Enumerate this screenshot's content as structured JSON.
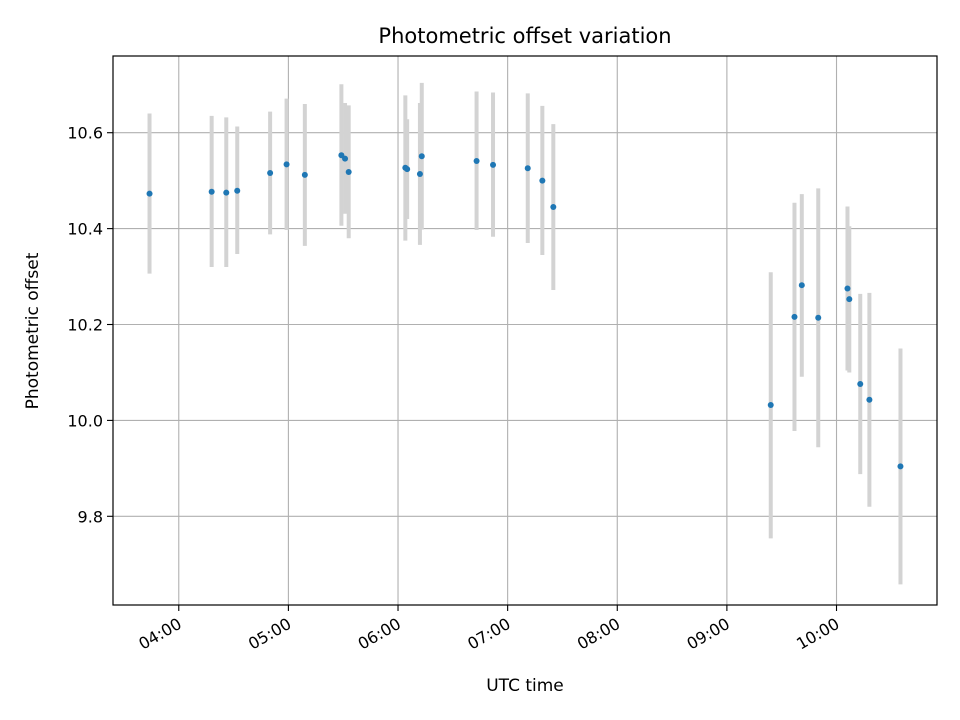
{
  "chart_data": {
    "type": "scatter",
    "title": "Photometric offset variation",
    "xlabel": "UTC time",
    "ylabel": "Photometric offset",
    "xlim": [
      "03:24",
      "10:55"
    ],
    "ylim": [
      9.615,
      10.76
    ],
    "x_ticks": [
      "04:00",
      "05:00",
      "06:00",
      "07:00",
      "08:00",
      "09:00",
      "10:00"
    ],
    "y_ticks": [
      "9.8",
      "10.0",
      "10.2",
      "10.4",
      "10.6"
    ],
    "grid": true,
    "colors": {
      "points": "#1f77b4",
      "errorbars": "#d3d3d3",
      "grid": "#b0b0b0"
    },
    "points": [
      {
        "x": "03:44",
        "y": 10.473,
        "low": 10.306,
        "high": 10.64
      },
      {
        "x": "04:18",
        "y": 10.477,
        "low": 10.32,
        "high": 10.635
      },
      {
        "x": "04:26",
        "y": 10.475,
        "low": 10.32,
        "high": 10.632
      },
      {
        "x": "04:32",
        "y": 10.479,
        "low": 10.347,
        "high": 10.613
      },
      {
        "x": "04:50",
        "y": 10.516,
        "low": 10.388,
        "high": 10.644
      },
      {
        "x": "04:59",
        "y": 10.534,
        "low": 10.397,
        "high": 10.671
      },
      {
        "x": "05:09",
        "y": 10.512,
        "low": 10.364,
        "high": 10.66
      },
      {
        "x": "05:29",
        "y": 10.553,
        "low": 10.406,
        "high": 10.701
      },
      {
        "x": "05:31",
        "y": 10.546,
        "low": 10.431,
        "high": 10.662
      },
      {
        "x": "05:33",
        "y": 10.518,
        "low": 10.38,
        "high": 10.657
      },
      {
        "x": "06:04",
        "y": 10.527,
        "low": 10.375,
        "high": 10.678
      },
      {
        "x": "06:05",
        "y": 10.524,
        "low": 10.42,
        "high": 10.628
      },
      {
        "x": "06:12",
        "y": 10.514,
        "low": 10.366,
        "high": 10.662
      },
      {
        "x": "06:13",
        "y": 10.551,
        "low": 10.398,
        "high": 10.704
      },
      {
        "x": "06:43",
        "y": 10.541,
        "low": 10.397,
        "high": 10.686
      },
      {
        "x": "06:52",
        "y": 10.533,
        "low": 10.383,
        "high": 10.684
      },
      {
        "x": "07:11",
        "y": 10.526,
        "low": 10.37,
        "high": 10.682
      },
      {
        "x": "07:19",
        "y": 10.5,
        "low": 10.345,
        "high": 10.656
      },
      {
        "x": "07:25",
        "y": 10.445,
        "low": 10.272,
        "high": 10.618
      },
      {
        "x": "09:24",
        "y": 10.032,
        "low": 9.754,
        "high": 10.309
      },
      {
        "x": "09:37",
        "y": 10.216,
        "low": 9.978,
        "high": 10.454
      },
      {
        "x": "09:41",
        "y": 10.282,
        "low": 10.091,
        "high": 10.472
      },
      {
        "x": "09:50",
        "y": 10.214,
        "low": 9.944,
        "high": 10.484
      },
      {
        "x": "10:06",
        "y": 10.275,
        "low": 10.104,
        "high": 10.446
      },
      {
        "x": "10:07",
        "y": 10.253,
        "low": 10.1,
        "high": 10.405
      },
      {
        "x": "10:13",
        "y": 10.076,
        "low": 9.888,
        "high": 10.264
      },
      {
        "x": "10:18",
        "y": 10.043,
        "low": 9.82,
        "high": 10.266
      },
      {
        "x": "10:35",
        "y": 9.904,
        "low": 9.658,
        "high": 10.15
      }
    ]
  }
}
